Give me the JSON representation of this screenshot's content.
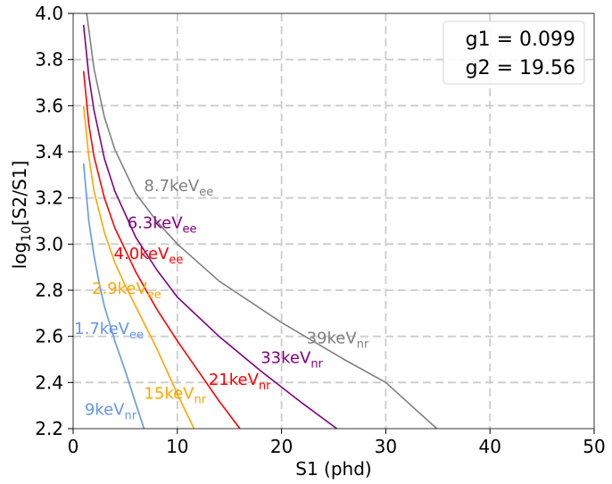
{
  "chart_data": {
    "type": "line",
    "title": "",
    "xlabel": "S1 (phd)",
    "ylabel": "log10[S2/S1]",
    "xlim": [
      0,
      50
    ],
    "ylim": [
      2.2,
      4.0
    ],
    "x_ticks": [
      0,
      10,
      20,
      30,
      40,
      50
    ],
    "y_ticks": [
      2.2,
      2.4,
      2.6,
      2.8,
      3.0,
      3.2,
      3.4,
      3.6,
      3.8,
      4.0
    ],
    "x_tick_labels": [
      "0",
      "10",
      "20",
      "30",
      "40",
      "50"
    ],
    "y_tick_labels": [
      "2.2",
      "2.4",
      "2.6",
      "2.8",
      "3.0",
      "3.2",
      "3.4",
      "3.6",
      "3.8",
      "4.0"
    ],
    "grid": true,
    "legend_placement": "top-right",
    "legend": [
      "g1 = 0.099",
      "g2 = 19.56"
    ],
    "series": [
      {
        "color": "#6495ED",
        "x": [
          1.0,
          1.5,
          2.0,
          2.5,
          3.0,
          4.0,
          5.0,
          6.0,
          6.8
        ],
        "y": [
          3.35,
          3.1,
          2.95,
          2.83,
          2.73,
          2.58,
          2.45,
          2.31,
          2.2
        ]
      },
      {
        "color": "#FFA500",
        "x": [
          1.0,
          1.5,
          2.0,
          3.0,
          4.0,
          5.0,
          6.0,
          8.0,
          10.0,
          11.6
        ],
        "y": [
          3.6,
          3.38,
          3.23,
          3.05,
          2.92,
          2.82,
          2.73,
          2.55,
          2.35,
          2.2
        ]
      },
      {
        "color": "#FF0000",
        "x": [
          1.0,
          1.5,
          2.0,
          3.0,
          4.0,
          6.0,
          8.0,
          10.0,
          12.0,
          14.0,
          16.0
        ],
        "y": [
          3.75,
          3.52,
          3.38,
          3.2,
          3.07,
          2.88,
          2.72,
          2.58,
          2.45,
          2.32,
          2.2
        ]
      },
      {
        "color": "#800080",
        "x": [
          1.0,
          1.5,
          2.0,
          3.0,
          4.0,
          6.0,
          8.0,
          10.0,
          14.0,
          18.0,
          22.0,
          25.3
        ],
        "y": [
          3.95,
          3.73,
          3.58,
          3.37,
          3.23,
          3.03,
          2.89,
          2.77,
          2.6,
          2.45,
          2.31,
          2.2
        ]
      },
      {
        "color": "#808080",
        "x": [
          1.3,
          2.0,
          3.0,
          4.0,
          6.0,
          8.0,
          10.0,
          14.0,
          20.0,
          26.0,
          30.0,
          34.9
        ],
        "y": [
          4.0,
          3.76,
          3.55,
          3.41,
          3.22,
          3.1,
          3.0,
          2.84,
          2.66,
          2.5,
          2.4,
          2.2
        ]
      }
    ],
    "annotations": [
      {
        "base": "8.7keV",
        "sub": "ee",
        "x": 6.8,
        "y": 3.23,
        "color": "#808080"
      },
      {
        "base": "6.3keV",
        "sub": "ee",
        "x": 5.2,
        "y": 3.07,
        "color": "#800080"
      },
      {
        "base": "4.0keV",
        "sub": "ee",
        "x": 3.9,
        "y": 2.935,
        "color": "#FF0000"
      },
      {
        "base": "2.9keV",
        "sub": "ee",
        "x": 1.8,
        "y": 2.785,
        "color": "#FFA500"
      },
      {
        "base": "1.7keV",
        "sub": "ee",
        "x": 0.1,
        "y": 2.61,
        "color": "#6495ED"
      },
      {
        "base": "39keV",
        "sub": "nr",
        "x": 22.4,
        "y": 2.57,
        "color": "#808080"
      },
      {
        "base": "33keV",
        "sub": "nr",
        "x": 18.0,
        "y": 2.485,
        "color": "#800080"
      },
      {
        "base": "21keV",
        "sub": "nr",
        "x": 13.0,
        "y": 2.39,
        "color": "#FF0000"
      },
      {
        "base": "15keV",
        "sub": "nr",
        "x": 6.8,
        "y": 2.33,
        "color": "#FFA500"
      },
      {
        "base": "9keV",
        "sub": "nr",
        "x": 1.1,
        "y": 2.26,
        "color": "#6495ED"
      }
    ]
  }
}
